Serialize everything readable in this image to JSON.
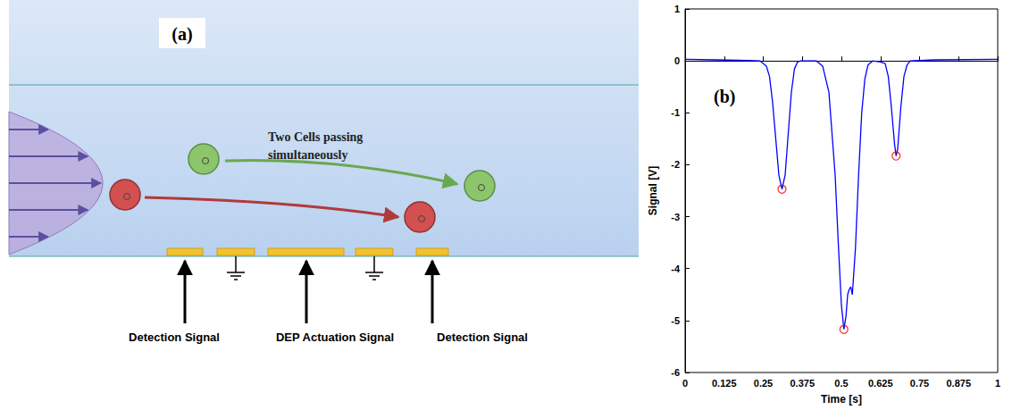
{
  "diagram": {
    "panel_label": "(a)",
    "annotation": "Two Cells passing simultaneously",
    "electrode_labels": [
      "Detection Signal",
      "DEP Actuation Signal",
      "Detection Signal"
    ]
  },
  "chart_data": {
    "type": "line",
    "panel_label": "(b)",
    "x_label": "Time [s]",
    "y_label": "Signal [V]",
    "xlim": [
      0,
      1
    ],
    "xticks": [
      0,
      0.125,
      0.25,
      0.375,
      0.5,
      0.625,
      0.75,
      0.875,
      1
    ],
    "ylim": [
      -6,
      1
    ],
    "yticks": [
      -6,
      -5,
      -4,
      -3,
      -2,
      -1,
      0,
      1
    ],
    "grid": false,
    "series": [
      {
        "type": "line",
        "color": "#0000ff",
        "line_style": "solid",
        "x": [
          0,
          0.1,
          0.2,
          0.24,
          0.26,
          0.27,
          0.28,
          0.29,
          0.3,
          0.31,
          0.32,
          0.33,
          0.34,
          0.35,
          0.36,
          0.37,
          0.42,
          0.44,
          0.46,
          0.48,
          0.49,
          0.5,
          0.508,
          0.515,
          0.52,
          0.525,
          0.53,
          0.535,
          0.545,
          0.555,
          0.565,
          0.575,
          0.585,
          0.6,
          0.625,
          0.64,
          0.65,
          0.66,
          0.67,
          0.675,
          0.68,
          0.69,
          0.7,
          0.71,
          0.72,
          0.8,
          1.0
        ],
        "values": [
          0.03,
          0.02,
          0.01,
          0,
          -0.1,
          -0.3,
          -0.8,
          -1.5,
          -2.2,
          -2.47,
          -2.2,
          -1.4,
          -0.6,
          -0.15,
          -0.02,
          0,
          0,
          -0.1,
          -0.6,
          -2.2,
          -3.5,
          -4.7,
          -5.17,
          -4.9,
          -4.5,
          -4.4,
          -4.35,
          -4.5,
          -3.6,
          -2.2,
          -1.0,
          -0.35,
          -0.08,
          0,
          -0.02,
          -0.05,
          -0.3,
          -0.9,
          -1.6,
          -1.83,
          -1.7,
          -0.9,
          -0.3,
          -0.08,
          0,
          0.02,
          0.03
        ]
      },
      {
        "type": "scatter",
        "color": "#ff0000",
        "marker": "circle",
        "x": [
          0.31,
          0.508,
          0.675
        ],
        "values": [
          -2.47,
          -5.17,
          -1.83
        ]
      }
    ]
  }
}
